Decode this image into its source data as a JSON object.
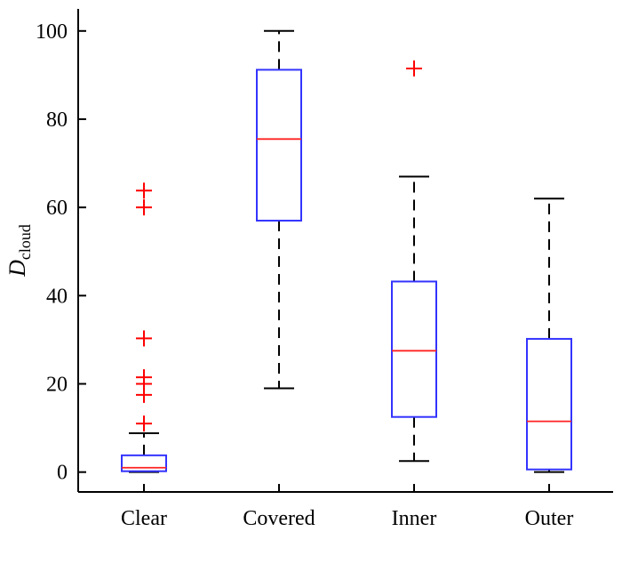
{
  "chart_data": {
    "type": "box",
    "title": "",
    "xlabel": "",
    "ylabel": {
      "main": "D",
      "subscript": "cloud"
    },
    "ylim": [
      -4.5,
      105
    ],
    "yticks": [
      0,
      20,
      40,
      60,
      80,
      100
    ],
    "ytick_labels": [
      "0",
      "20",
      "40",
      "60",
      "80",
      "100"
    ],
    "categories": [
      "Clear",
      "Covered",
      "Inner",
      "Outer"
    ],
    "boxes": [
      {
        "name": "Clear",
        "whisker_low": 0,
        "q1": 0.2,
        "median": 1.0,
        "q3": 3.8,
        "whisker_high": 8.8,
        "outliers": [
          11,
          17.5,
          20,
          21.5,
          30.3,
          60,
          63.8
        ]
      },
      {
        "name": "Covered",
        "whisker_low": 19,
        "q1": 57,
        "median": 75.5,
        "q3": 91.2,
        "whisker_high": 100,
        "outliers": []
      },
      {
        "name": "Inner",
        "whisker_low": 2.5,
        "q1": 12.5,
        "median": 27.5,
        "q3": 43.2,
        "whisker_high": 67,
        "outliers": [
          91.5
        ]
      },
      {
        "name": "Outer",
        "whisker_low": 0,
        "q1": 0.6,
        "median": 11.5,
        "q3": 30.2,
        "whisker_high": 62,
        "outliers": []
      }
    ],
    "colors": {
      "box": "#3333ff",
      "median": "#ff2222",
      "outlier": "#ff0000",
      "whisker": "#000000",
      "axis": "#000000"
    }
  }
}
